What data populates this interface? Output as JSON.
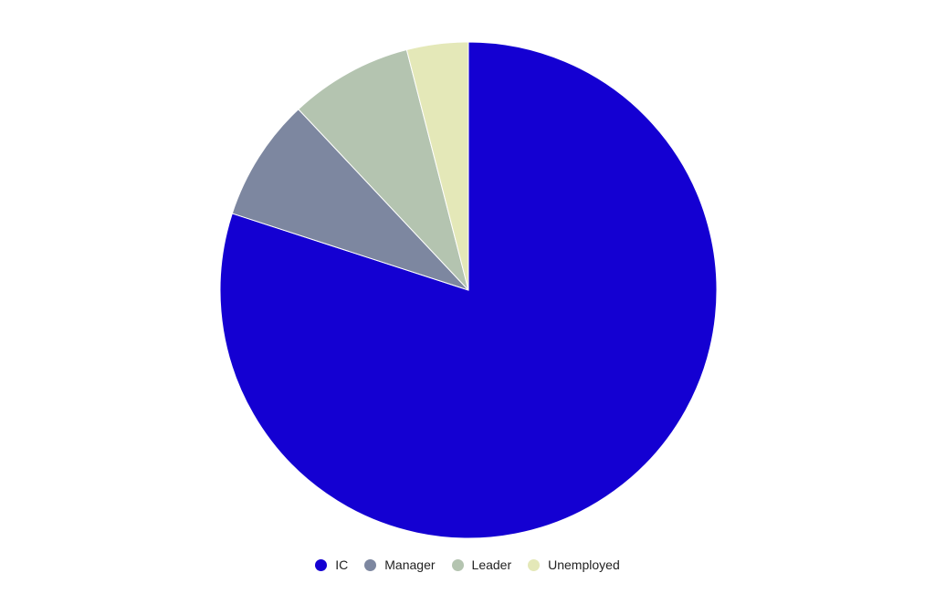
{
  "chart_data": {
    "type": "pie",
    "categories": [
      "IC",
      "Manager",
      "Leader",
      "Unemployed"
    ],
    "values": [
      80,
      8,
      8,
      4
    ],
    "colors": [
      "#1400d2",
      "#7d87a0",
      "#b4c4b0",
      "#e4e8b8"
    ],
    "start": "top",
    "direction": "clockwise",
    "legend_position": "bottom"
  }
}
